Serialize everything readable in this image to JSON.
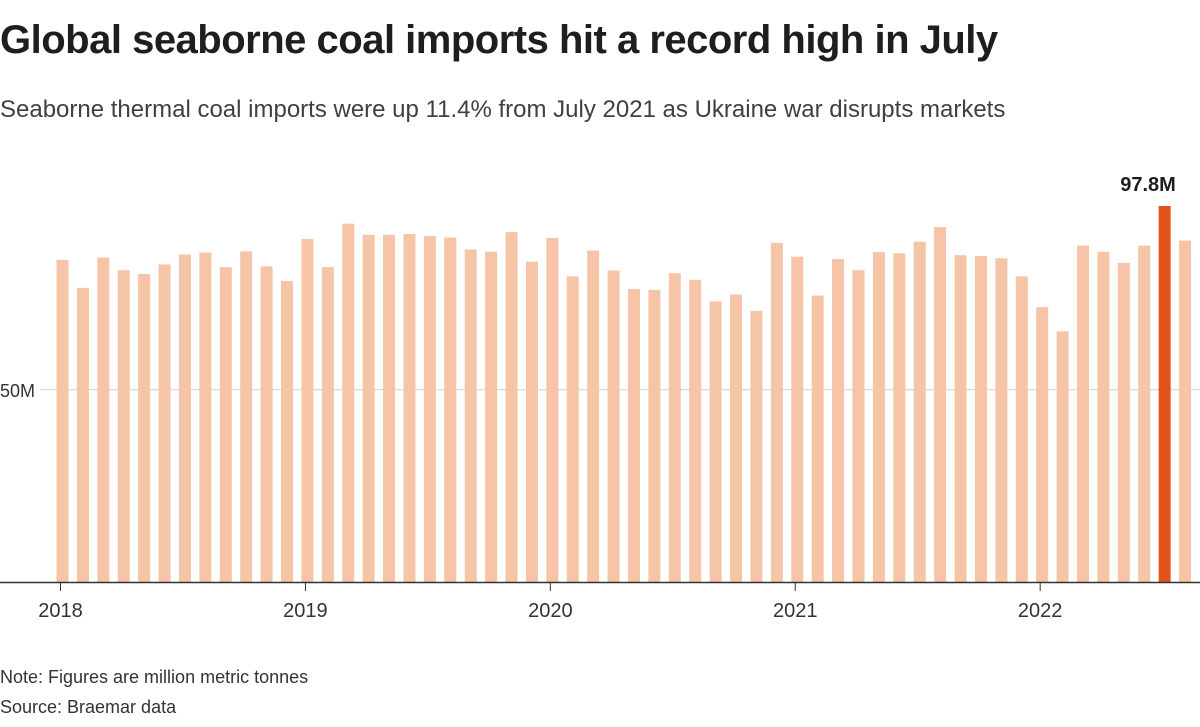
{
  "header": {
    "title": "Global seaborne coal imports hit a record high in July",
    "subtitle": "Seaborne thermal coal imports were up 11.4% from July 2021 as Ukraine war disrupts markets"
  },
  "footer": {
    "note": "Note: Figures are million metric tonnes",
    "source": "Source: Braemar data"
  },
  "colors": {
    "bar": "#f6c4a6",
    "highlight": "#e2521b",
    "axis": "#333333",
    "grid": "#cfcfcf",
    "text": "#333333"
  },
  "chart_data": {
    "type": "bar",
    "title": "Global seaborne coal imports hit a record high in July",
    "subtitle": "Seaborne thermal coal imports were up 11.4% from July 2021 as Ukraine war disrupts markets",
    "xlabel": "",
    "ylabel": "",
    "unit": "million metric tonnes",
    "ylim": [
      0,
      97.8
    ],
    "yticks": [
      {
        "value": 50,
        "label": "50M"
      }
    ],
    "xticks": [
      {
        "label": "2018",
        "index": 0
      },
      {
        "label": "2019",
        "index": 12
      },
      {
        "label": "2020",
        "index": 24
      },
      {
        "label": "2021",
        "index": 36
      },
      {
        "label": "2022",
        "index": 48
      }
    ],
    "categories": [
      "2018-01",
      "2018-02",
      "2018-03",
      "2018-04",
      "2018-05",
      "2018-06",
      "2018-07",
      "2018-08",
      "2018-09",
      "2018-10",
      "2018-11",
      "2018-12",
      "2019-01",
      "2019-02",
      "2019-03",
      "2019-04",
      "2019-05",
      "2019-06",
      "2019-07",
      "2019-08",
      "2019-09",
      "2019-10",
      "2019-11",
      "2019-12",
      "2020-01",
      "2020-02",
      "2020-03",
      "2020-04",
      "2020-05",
      "2020-06",
      "2020-07",
      "2020-08",
      "2020-09",
      "2020-10",
      "2020-11",
      "2020-12",
      "2021-01",
      "2021-02",
      "2021-03",
      "2021-04",
      "2021-05",
      "2021-06",
      "2021-07",
      "2021-08",
      "2021-09",
      "2021-10",
      "2021-11",
      "2021-12",
      "2022-01",
      "2022-02",
      "2022-03",
      "2022-04",
      "2022-05",
      "2022-06",
      "2022-07",
      "2022-08"
    ],
    "values": [
      83.8,
      76.5,
      84.4,
      81.1,
      80.1,
      82.6,
      85.2,
      85.7,
      81.9,
      86.0,
      82.1,
      78.3,
      89.2,
      81.9,
      93.2,
      90.3,
      90.3,
      90.5,
      90.0,
      89.6,
      86.5,
      85.9,
      91.0,
      83.3,
      89.5,
      79.5,
      86.2,
      81.0,
      76.2,
      76.0,
      80.3,
      78.6,
      73.0,
      74.8,
      70.5,
      88.2,
      84.6,
      74.5,
      84.0,
      81.1,
      85.8,
      85.5,
      88.5,
      92.3,
      85.0,
      84.8,
      84.2,
      79.5,
      71.5,
      65.2,
      87.5,
      85.9,
      83.0,
      87.5,
      97.8,
      88.8
    ],
    "highlight_index": 54,
    "annotation": {
      "label": "97.8M",
      "index": 54
    }
  }
}
